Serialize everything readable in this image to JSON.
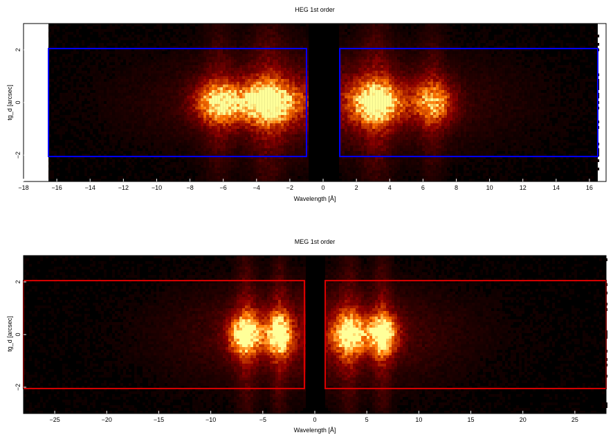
{
  "chart_data": [
    {
      "type": "heatmap",
      "title": "HEG 1st order",
      "xlabel": "Wavelength [Å]",
      "ylabel": "tg_d [arcsec]",
      "xlim": [
        -18,
        17
      ],
      "ylim": [
        -3,
        3
      ],
      "data_xrange": [
        -16.5,
        16.5
      ],
      "xticks": [
        -18,
        -16,
        -14,
        -12,
        -10,
        -8,
        -6,
        -4,
        -2,
        0,
        2,
        4,
        6,
        8,
        10,
        12,
        14,
        16
      ],
      "yticks": [
        -2,
        0,
        2
      ],
      "regions": [
        {
          "x0": -16.5,
          "x1": -1.0,
          "y0": -2.05,
          "y1": 2.05
        },
        {
          "x0": 1.0,
          "x1": 16.5,
          "y0": -2.05,
          "y1": 2.05
        }
      ],
      "hotspots": [
        {
          "x": -6.3,
          "amp": 0.75,
          "wx": 1.4
        },
        {
          "x": -3.3,
          "amp": 1.0,
          "wx": 1.8
        },
        {
          "x": 3.2,
          "amp": 1.0,
          "wx": 1.5
        },
        {
          "x": 6.6,
          "amp": 0.65,
          "wx": 1.2
        }
      ],
      "box_color": "#0000ff"
    },
    {
      "type": "heatmap",
      "title": "MEG 1st order",
      "xlabel": "Wavelength [Å]",
      "ylabel": "tg_d [arcsec]",
      "xlim": [
        -28,
        28
      ],
      "ylim": [
        -3,
        3
      ],
      "data_xrange": [
        -28,
        28
      ],
      "xticks": [
        -25,
        -20,
        -15,
        -10,
        -5,
        0,
        5,
        10,
        15,
        20,
        25
      ],
      "yticks": [
        -2,
        0,
        2
      ],
      "regions": [
        {
          "x0": -28,
          "x1": -1.0,
          "y0": -2.05,
          "y1": 2.05
        },
        {
          "x0": 1.0,
          "x1": 28,
          "y0": -2.05,
          "y1": 2.05
        }
      ],
      "hotspots": [
        {
          "x": -6.6,
          "amp": 0.95,
          "wx": 1.6
        },
        {
          "x": -3.4,
          "amp": 0.95,
          "wx": 1.2
        },
        {
          "x": 3.3,
          "amp": 0.85,
          "wx": 1.6
        },
        {
          "x": 6.5,
          "amp": 0.95,
          "wx": 1.4
        }
      ],
      "box_color": "#dd0000"
    }
  ]
}
